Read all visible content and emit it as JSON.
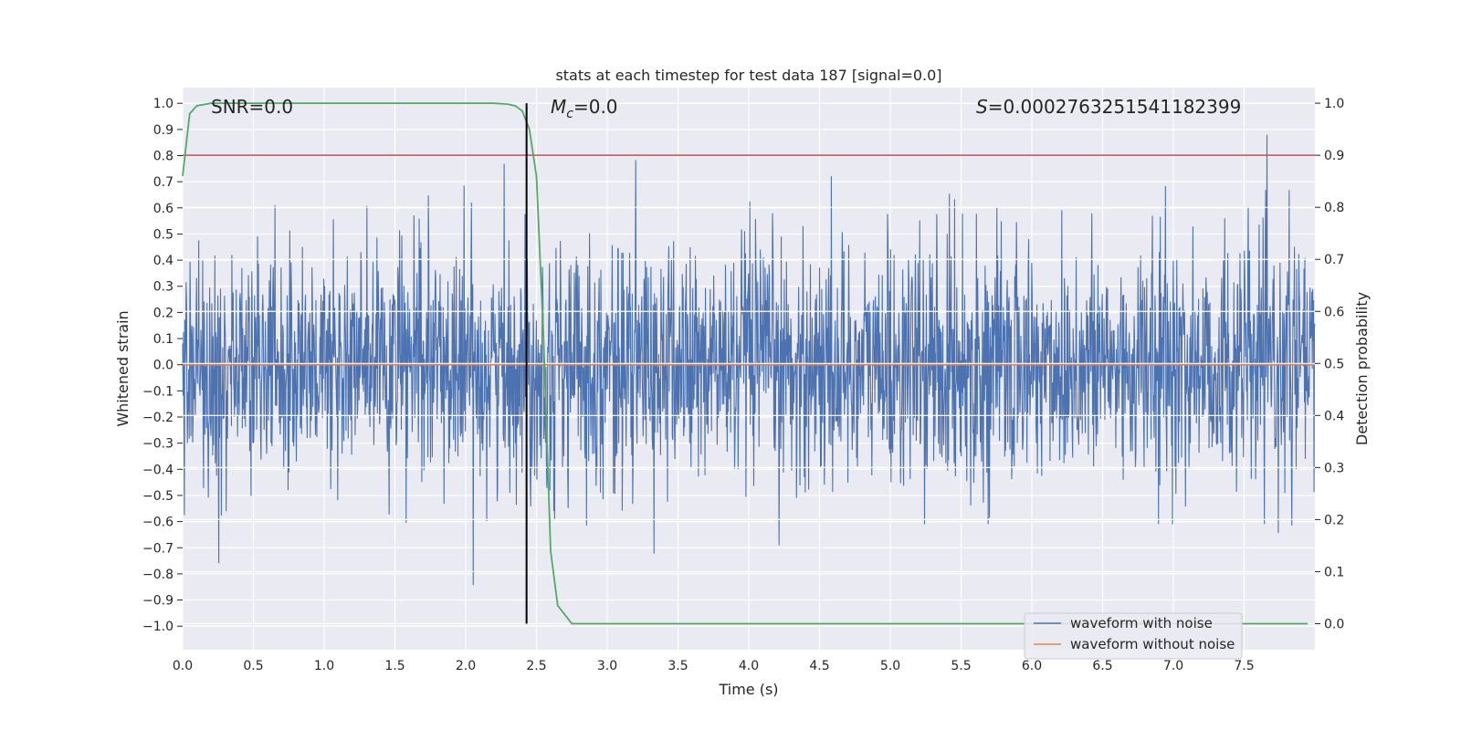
{
  "chart_data": {
    "type": "line",
    "title": "stats at each timestep for test data 187 [signal=0.0]",
    "xlabel": "Time (s)",
    "ylabel_left": "Whitened strain",
    "ylabel_right": "Detection probability",
    "xlim": [
      0.0,
      8.0
    ],
    "ylim_left": [
      -1.09,
      1.06
    ],
    "ylim_right": [
      -0.05,
      1.03
    ],
    "x_ticks": [
      0.0,
      0.5,
      1.0,
      1.5,
      2.0,
      2.5,
      3.0,
      3.5,
      4.0,
      4.5,
      5.0,
      5.5,
      6.0,
      6.5,
      7.0,
      7.5
    ],
    "x_tick_labels": [
      "0.0",
      "0.5",
      "1.0",
      "1.5",
      "2.0",
      "2.5",
      "3.0",
      "3.5",
      "4.0",
      "4.5",
      "5.0",
      "5.5",
      "6.0",
      "6.5",
      "7.0",
      "7.5"
    ],
    "y_left_ticks": [
      1.0,
      0.9,
      0.8,
      0.7,
      0.6,
      0.5,
      0.4,
      0.3,
      0.2,
      0.1,
      0.0,
      -0.1,
      -0.2,
      -0.3,
      -0.4,
      -0.5,
      -0.6,
      -0.7,
      -0.8,
      -0.9,
      -1.0
    ],
    "y_left_tick_labels": [
      "1.0",
      "0.9",
      "0.8",
      "0.7",
      "0.6",
      "0.5",
      "0.4",
      "0.3",
      "0.2",
      "0.1",
      "0.0",
      "−0.1",
      "−0.2",
      "−0.3",
      "−0.4",
      "−0.5",
      "−0.6",
      "−0.7",
      "−0.8",
      "−0.9",
      "−1.0"
    ],
    "y_right_ticks": [
      1.0,
      0.9,
      0.8,
      0.7,
      0.6,
      0.5,
      0.4,
      0.3,
      0.2,
      0.1,
      0.0
    ],
    "y_right_tick_labels": [
      "1.0",
      "0.9",
      "0.8",
      "0.7",
      "0.6",
      "0.5",
      "0.4",
      "0.3",
      "0.2",
      "0.1",
      "0.0"
    ],
    "grid": true,
    "annotations": {
      "snr": "SNR=0.0",
      "mc_symbol": "M",
      "mc_subscript": "c",
      "mc_value": "=0.0",
      "s_symbol": "S",
      "s_value": "=0.0002763251541182399"
    },
    "series": [
      {
        "name": "waveform with noise",
        "axis": "left",
        "color": "#4c72b0",
        "description": "dense noisy whitened strain, approximately within [-0.95, 0.97]",
        "amplitude_range": [
          -0.95,
          0.97
        ]
      },
      {
        "name": "waveform without noise",
        "axis": "left",
        "color": "#dd8452",
        "x": [
          0.0,
          8.0
        ],
        "y": [
          0.0,
          0.0
        ]
      },
      {
        "name": "detection probability",
        "axis": "right",
        "color": "#55a868",
        "x": [
          0.0,
          0.05,
          0.1,
          0.2,
          0.5,
          1.0,
          1.5,
          2.0,
          2.2,
          2.3,
          2.35,
          2.4,
          2.45,
          2.5,
          2.55,
          2.6,
          2.65,
          2.75,
          3.0,
          5.0,
          7.95
        ],
        "y": [
          0.86,
          0.98,
          0.995,
          1.0,
          1.0,
          1.0,
          1.0,
          1.0,
          1.0,
          0.998,
          0.995,
          0.985,
          0.95,
          0.86,
          0.55,
          0.14,
          0.035,
          0.0,
          0.0,
          0.0,
          0.0
        ]
      }
    ],
    "threshold_line": {
      "axis": "right",
      "y": 0.9,
      "color": "#c44e52"
    },
    "vertical_marker": {
      "x": 2.43,
      "color": "#000000",
      "y_range_right": [
        0.0,
        1.0
      ]
    },
    "legend": {
      "position": "lower-right",
      "entries": [
        {
          "label": "waveform with noise",
          "color": "#4c72b0"
        },
        {
          "label": "waveform without noise",
          "color": "#dd8452"
        }
      ]
    },
    "colors": {
      "background": "#eaeaf2",
      "grid": "#ffffff",
      "noise": "#4c72b0",
      "clean": "#dd8452",
      "probability": "#55a868",
      "threshold": "#c44e52",
      "marker": "#000000"
    }
  }
}
